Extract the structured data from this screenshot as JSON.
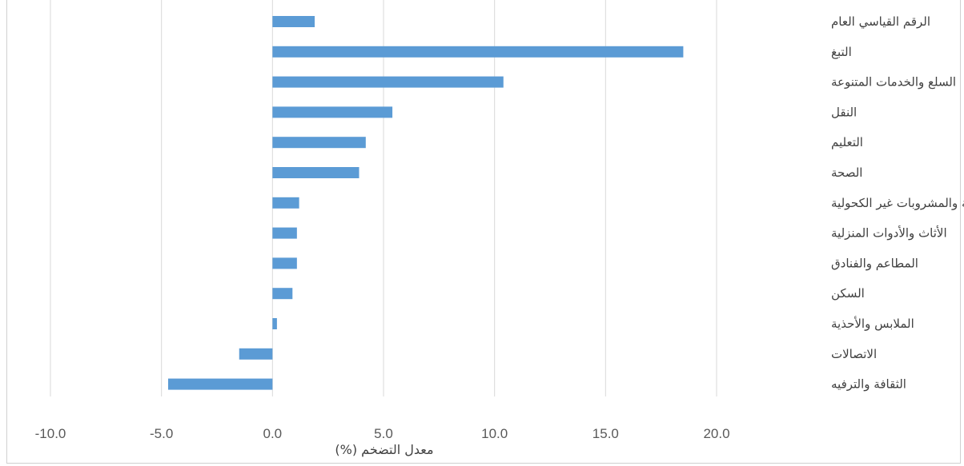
{
  "chart_data": {
    "type": "bar",
    "orientation": "horizontal",
    "categories": [
      "الرقم القياسي العام",
      "التبغ",
      "السلع والخدمات المتنوعة",
      "النقل",
      "التعليم",
      "الصحة",
      "الأغذية والمشروبات غير الكحولية",
      "الأثاث والأدوات المنزلية",
      "المطاعم والفنادق",
      "السكن",
      "الملابس والأحذية",
      "الاتصالات",
      "الثقافة والترفيه"
    ],
    "values": [
      1.9,
      18.5,
      10.4,
      5.4,
      4.2,
      3.9,
      1.2,
      1.1,
      1.1,
      0.9,
      0.2,
      -1.5,
      -4.7
    ],
    "xlabel": "معدل التضخم (%)",
    "ylabel": "",
    "xlim": [
      -10,
      20
    ],
    "x_ticks": [
      "-10.0",
      "-5.0",
      "0.0",
      "5.0",
      "10.0",
      "15.0",
      "20.0"
    ],
    "grid": "vertical",
    "bar_color": "#5b9bd5",
    "grid_color": "#d9d9d9",
    "category_labels_position": "right"
  }
}
